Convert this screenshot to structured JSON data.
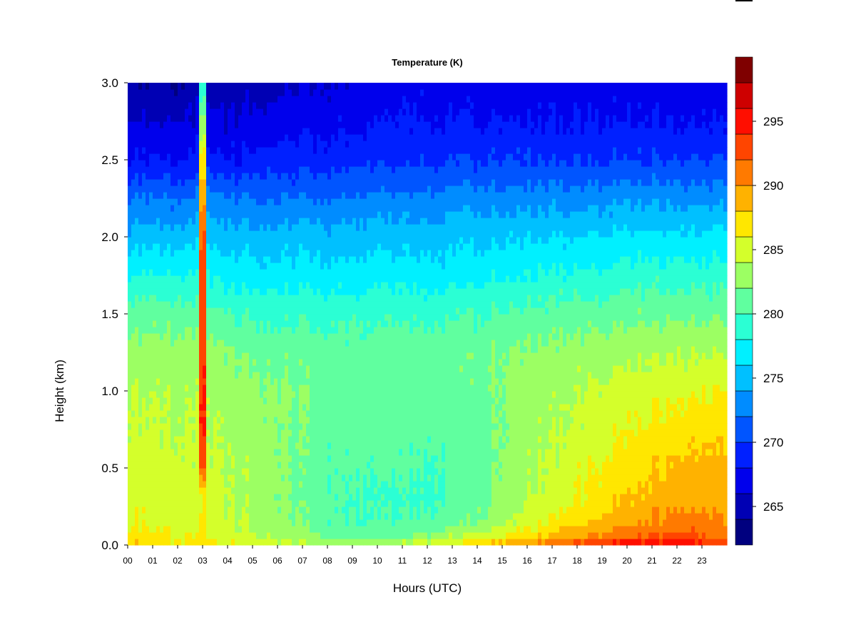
{
  "chart_data": {
    "type": "heatmap",
    "title": "Temperature (K)",
    "xlabel": "Hours (UTC)",
    "ylabel": "Height (km)",
    "xlim": [
      0,
      24
    ],
    "ylim": [
      0.0,
      3.0
    ],
    "x_tick_labels": [
      "00",
      "01",
      "02",
      "03",
      "04",
      "05",
      "06",
      "07",
      "08",
      "09",
      "10",
      "11",
      "12",
      "13",
      "14",
      "15",
      "16",
      "17",
      "18",
      "19",
      "20",
      "21",
      "22",
      "23"
    ],
    "y_tick_labels": [
      "0.0",
      "0.5",
      "1.0",
      "1.5",
      "2.0",
      "2.5",
      "3.0"
    ],
    "colorbar": {
      "range": [
        262,
        298
      ],
      "step": 2,
      "tick_values": [
        265,
        270,
        275,
        280,
        285,
        290,
        295
      ],
      "tick_labels": [
        "265",
        "270",
        "275",
        "280",
        "285",
        "290",
        "295"
      ],
      "colors": [
        "#00007F",
        "#0000B4",
        "#0000EC",
        "#0020FF",
        "#0055FF",
        "#008CFF",
        "#00C0FF",
        "#00F0FF",
        "#2BFFD4",
        "#60FF9F",
        "#9CFF63",
        "#D4FF2B",
        "#FFE700",
        "#FFB200",
        "#FF7A00",
        "#FF4500",
        "#FF0E00",
        "#CE0000",
        "#7F0000"
      ]
    },
    "grid": false,
    "temperature_field_K": {
      "heights_km": [
        0.0,
        0.05,
        0.15,
        0.3,
        0.5,
        0.75,
        1.0,
        1.25,
        1.5,
        1.75,
        2.0,
        2.25,
        2.5,
        2.75,
        3.0
      ],
      "profiles": [
        {
          "hour": 0,
          "T": [
            288,
            287,
            286,
            285.5,
            285,
            284.5,
            284,
            283,
            281,
            278,
            275,
            272,
            268,
            266,
            264
          ]
        },
        {
          "hour": 2,
          "T": [
            287,
            286,
            285,
            285,
            284.5,
            284,
            283.5,
            283,
            281,
            278,
            275,
            272,
            268,
            266,
            264
          ]
        },
        {
          "hour": 4,
          "T": [
            286,
            285,
            284.5,
            284,
            284,
            283.5,
            283,
            282,
            280,
            277,
            275,
            272,
            268,
            266,
            265
          ]
        },
        {
          "hour": 6,
          "T": [
            285,
            284,
            283,
            282.5,
            282.5,
            282.5,
            282.5,
            281.5,
            279.5,
            277,
            275,
            272,
            269,
            267,
            265.5
          ]
        },
        {
          "hour": 8,
          "T": [
            284.5,
            282,
            280.5,
            280.5,
            280.5,
            281,
            281.5,
            281,
            279.5,
            277,
            275,
            272,
            269,
            267.5,
            266
          ]
        },
        {
          "hour": 10,
          "T": [
            284,
            281,
            280,
            279.5,
            280,
            280.5,
            281,
            281,
            279.5,
            277,
            275,
            272.5,
            269.5,
            268,
            266.5
          ]
        },
        {
          "hour": 12,
          "T": [
            285.5,
            282.5,
            280.5,
            279.5,
            280,
            280.5,
            281,
            281,
            279.5,
            277,
            275,
            272.5,
            269.5,
            268,
            267
          ]
        },
        {
          "hour": 14,
          "T": [
            288,
            285,
            282,
            281,
            281,
            281,
            281.5,
            281.5,
            280,
            277.5,
            275.5,
            273,
            270,
            268,
            267
          ]
        },
        {
          "hour": 16,
          "T": [
            291,
            287.5,
            285,
            284,
            283.5,
            283,
            283,
            282.5,
            280.5,
            278,
            276,
            273,
            270,
            268,
            267
          ]
        },
        {
          "hour": 18,
          "T": [
            293.5,
            290,
            287.5,
            286,
            285.5,
            284.5,
            284,
            283,
            281,
            278.5,
            276,
            273,
            270,
            268,
            267
          ]
        },
        {
          "hour": 20,
          "T": [
            295.5,
            292,
            289.5,
            288,
            287,
            286,
            285,
            283.5,
            281.5,
            279,
            276.5,
            273.5,
            270,
            268,
            267
          ]
        },
        {
          "hour": 22,
          "T": [
            296.5,
            293,
            291,
            289.5,
            288.5,
            287,
            285.5,
            284,
            281.5,
            279,
            276.5,
            273.5,
            270,
            268,
            266.5
          ]
        },
        {
          "hour": 24,
          "T": [
            294,
            291.5,
            290,
            289.5,
            289,
            287.5,
            286,
            284,
            281.5,
            279,
            276.5,
            273.5,
            270,
            268,
            266.5
          ]
        }
      ],
      "warm_column": {
        "hour_center": 3.0,
        "heights_km": [
          0.0,
          0.3,
          0.4,
          0.5,
          0.7,
          1.0,
          1.3,
          1.6,
          2.0,
          2.3,
          2.6,
          3.0
        ],
        "T": [
          287,
          286,
          288,
          292,
          294,
          294,
          293.5,
          293,
          292,
          289,
          285,
          278
        ]
      }
    }
  }
}
